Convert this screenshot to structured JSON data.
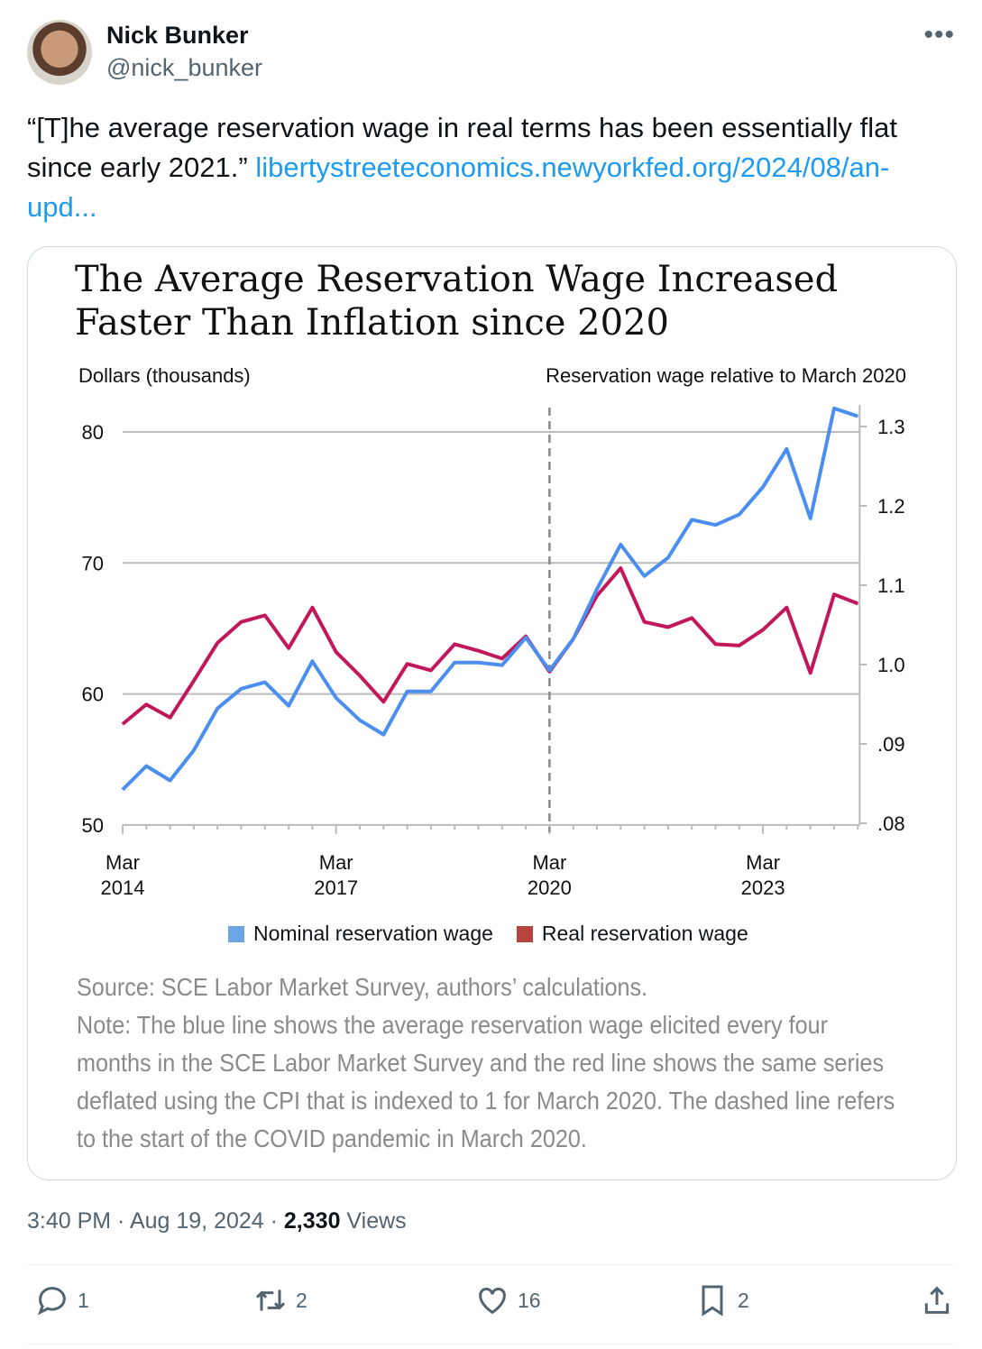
{
  "author": {
    "name": "Nick Bunker",
    "handle": "@nick_bunker"
  },
  "tweet": {
    "text": "“[T]he average reservation wage in real terms has been essentially flat since early 2021.” ",
    "link": "libertystreeteconomics.newyorkfed.org/2024/08/an-upd..."
  },
  "chart_data": {
    "type": "line",
    "title": "The Average Reservation Wage Increased Faster Than Inflation since 2020",
    "ylabel": "Dollars (thousands)",
    "y2label": "Reservation wage relative to March 2020",
    "ylim": [
      50,
      80
    ],
    "yticks": [
      "80",
      "70",
      "60",
      "50"
    ],
    "y2ticks": [
      "1.3",
      "1.2",
      "1.1",
      "1.0",
      ".09",
      ".08"
    ],
    "xticks": [
      {
        "l1": "Mar",
        "l2": "2014",
        "i": 0
      },
      {
        "l1": "Mar",
        "l2": "2017",
        "i": 9
      },
      {
        "l1": "Mar",
        "l2": "2020",
        "i": 18
      },
      {
        "l1": "Mar",
        "l2": "2023",
        "i": 27
      }
    ],
    "x_interval": "every four months, Mar 2014 to Jul 2024",
    "vline_index": 18,
    "series": [
      {
        "name": "Nominal reservation wage",
        "color": "#4a8ff0",
        "values": [
          52.7,
          54.5,
          53.4,
          55.7,
          58.9,
          60.4,
          60.9,
          59.1,
          62.5,
          59.7,
          58.0,
          56.9,
          60.2,
          60.2,
          62.4,
          62.4,
          62.2,
          64.3,
          61.8,
          64.2,
          68.0,
          71.4,
          69.0,
          70.4,
          73.3,
          72.9,
          73.7,
          75.8,
          78.7,
          73.4,
          81.8,
          81.2
        ]
      },
      {
        "name": "Real reservation wage",
        "color": "#c2185b",
        "values": [
          57.7,
          59.2,
          58.2,
          61.0,
          63.9,
          65.5,
          66.0,
          63.5,
          66.6,
          63.2,
          61.4,
          59.4,
          62.3,
          61.8,
          63.8,
          63.3,
          62.7,
          64.4,
          61.7,
          64.2,
          67.5,
          69.6,
          65.5,
          65.1,
          65.8,
          63.8,
          63.7,
          64.9,
          66.6,
          61.6,
          67.6,
          66.9
        ]
      }
    ],
    "legend_swatch": [
      "#6aa6e6",
      "#b8443f"
    ],
    "source": "Source: SCE Labor Market Survey, authors’ calculations.",
    "note": "Note: The blue line shows the average reservation wage elicited every four months in the SCE Labor Market Survey and the red line shows the same series deflated using the CPI that is indexed to 1 for March 2020. The dashed line refers to the start of the COVID pandemic in March 2020."
  },
  "meta": {
    "time": "3:40 PM · Aug 19, 2024 · ",
    "views_count": "2,330",
    "views_label": " Views"
  },
  "actions": {
    "replies": "1",
    "reposts": "2",
    "likes": "16",
    "bookmarks": "2"
  }
}
